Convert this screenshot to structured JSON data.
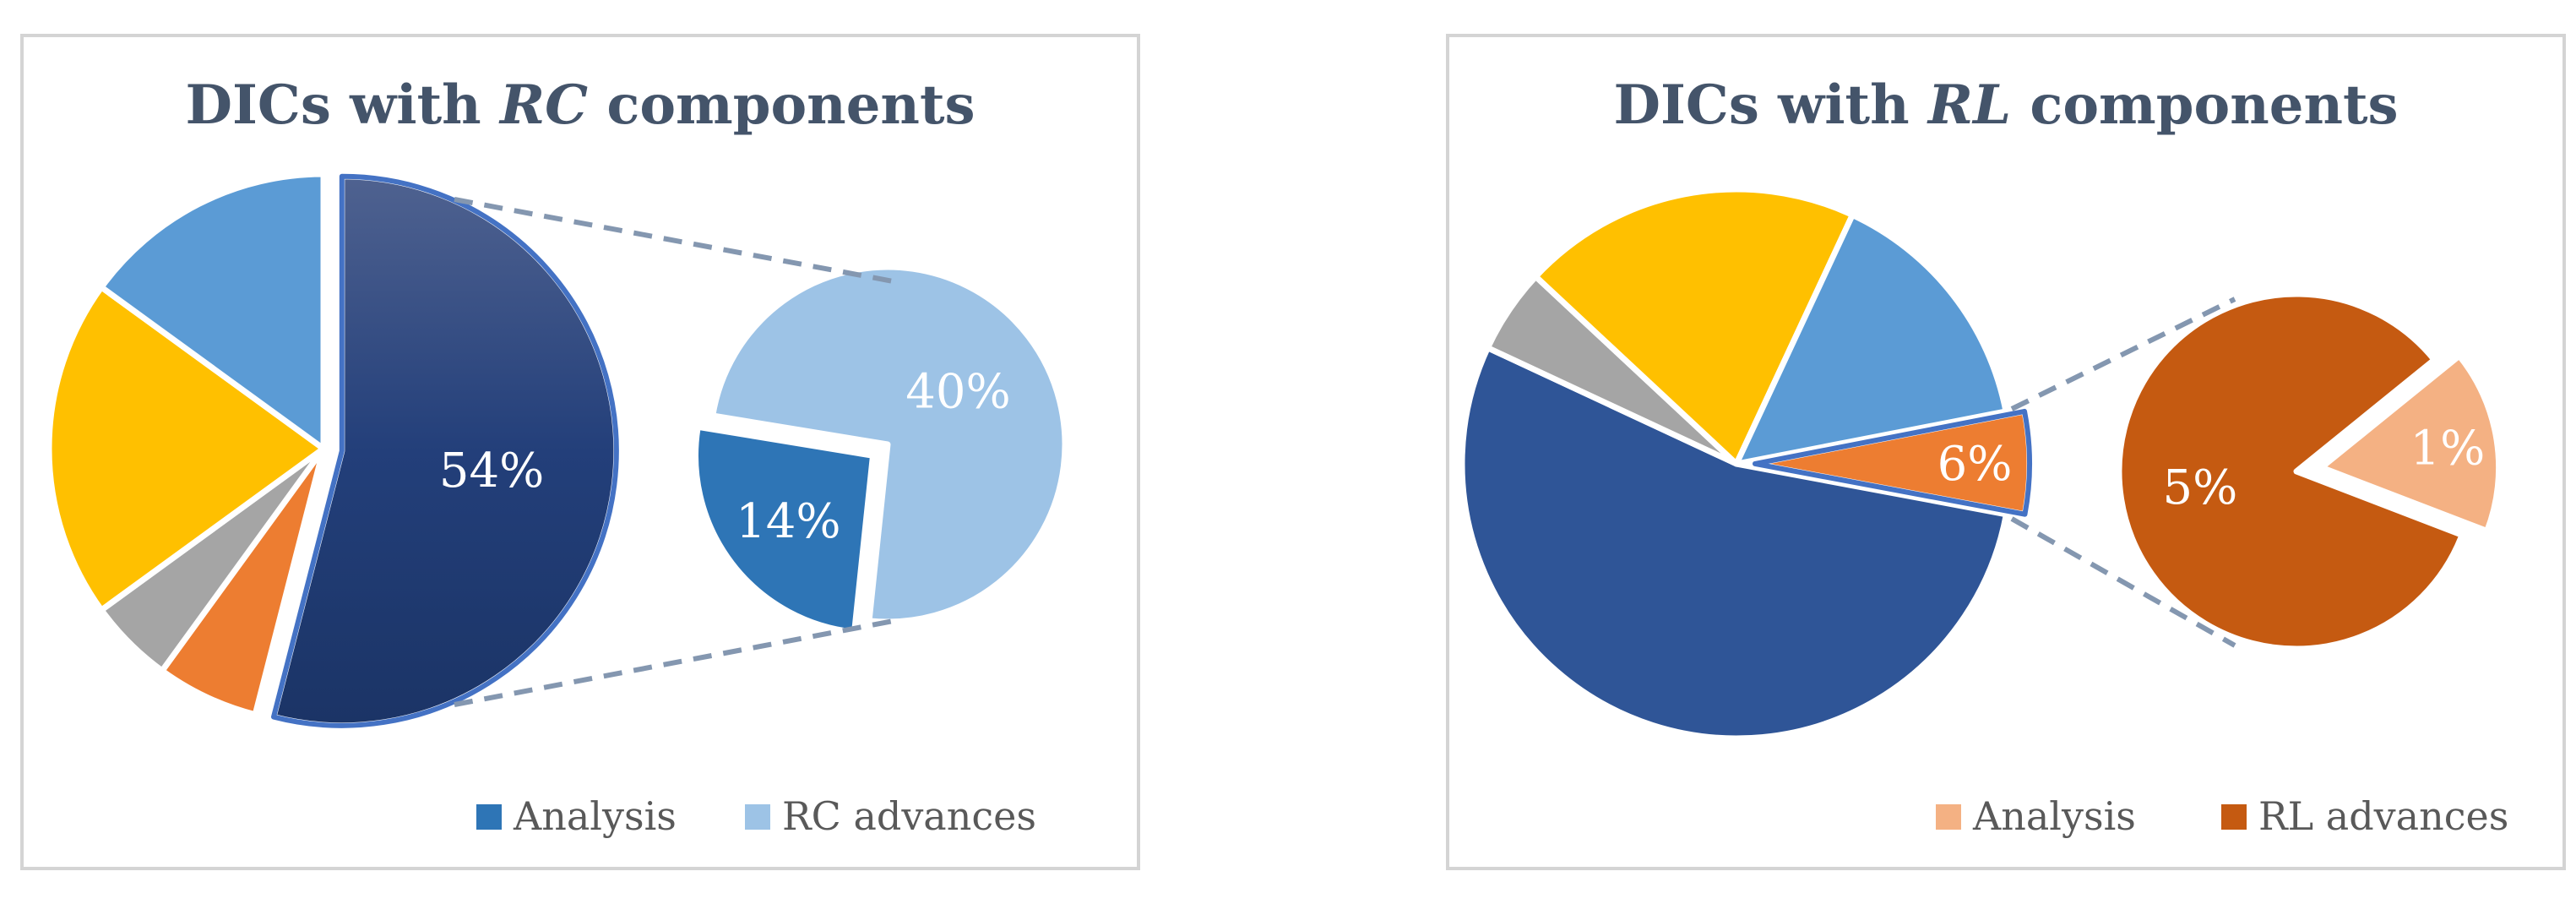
{
  "chart_data": [
    {
      "type": "pie",
      "variant": "bar-of-pie",
      "title": {
        "prefix": "DICs with ",
        "italic": "RC",
        "suffix": " components"
      },
      "main_pie": {
        "slices": [
          {
            "name": "",
            "value": 54,
            "label": "54%",
            "color": "#1f3a6e",
            "exploded": true
          },
          {
            "name": "",
            "value": 6,
            "label": "",
            "color": "#ed7d31"
          },
          {
            "name": "",
            "value": 5,
            "label": "",
            "color": "#a5a5a5"
          },
          {
            "name": "",
            "value": 20,
            "label": "",
            "color": "#ffc000"
          },
          {
            "name": "",
            "value": 15,
            "label": "",
            "color": "#5b9bd5"
          }
        ]
      },
      "secondary_pie": {
        "slices": [
          {
            "name": "Analysis",
            "value": 14,
            "label": "14%",
            "color": "#2e75b6",
            "exploded": true
          },
          {
            "name": "RC advances",
            "value": 40,
            "label": "40%",
            "color": "#9dc3e6"
          }
        ]
      },
      "legend": [
        {
          "name": "Analysis",
          "color": "#2e75b6"
        },
        {
          "name": "RC advances",
          "color": "#9dc3e6"
        }
      ],
      "legend_position": "bottom-right"
    },
    {
      "type": "pie",
      "variant": "bar-of-pie",
      "title": {
        "prefix": "DICs with ",
        "italic": "RL",
        "suffix": " components"
      },
      "main_pie": {
        "slices": [
          {
            "name": "",
            "value": 6,
            "label": "6%",
            "color": "#ed7d31",
            "exploded": true
          },
          {
            "name": "",
            "value": 54,
            "label": "",
            "color": "#2f5597"
          },
          {
            "name": "",
            "value": 5,
            "label": "",
            "color": "#a5a5a5"
          },
          {
            "name": "",
            "value": 20,
            "label": "",
            "color": "#ffc000"
          },
          {
            "name": "",
            "value": 15,
            "label": "",
            "color": "#5b9bd5"
          }
        ]
      },
      "secondary_pie": {
        "slices": [
          {
            "name": "RL advances",
            "value": 5,
            "label": "5%",
            "color": "#c55a11"
          },
          {
            "name": "Analysis",
            "value": 1,
            "label": "1%",
            "color": "#f4b183",
            "exploded": true
          }
        ]
      },
      "legend": [
        {
          "name": "Analysis",
          "color": "#f4b183"
        },
        {
          "name": "RL advances",
          "color": "#c55a11"
        }
      ],
      "legend_position": "bottom-right"
    }
  ]
}
